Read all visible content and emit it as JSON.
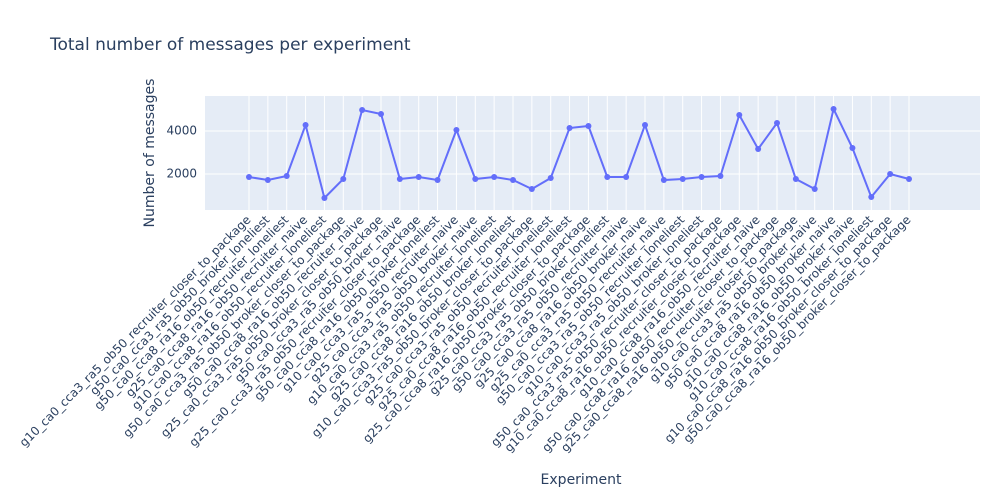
{
  "chart_data": {
    "type": "line",
    "title": "Total number of messages per experiment",
    "xlabel": "Experiment",
    "ylabel": "Number of messages",
    "categories": [
      "g10_ca0_cca3_ra5_ob50_recruiter_closer_to_package",
      "g50_ca0_cca3_ra5_ob50_broker_loneliest",
      "g50_ca0_cca8_ra16_ob50_recruiter_loneliest",
      "g25_ca0_cca8_ra16_ob50_recruiter_naive",
      "g10_ca0_cca8_ra16_ob50_recruiter_loneliest",
      "g50_ca0_cca3_ra5_ob50_broker_closer_to_package",
      "g50_ca0_cca8_ra16_ob50_recruiter_naive",
      "g25_ca0_cca3_ra5_ob50_broker_closer_to_package",
      "g50_ca0_cca3_ra5_ob50_broker_naive",
      "g25_ca0_cca3_ra5_ob50_recruiter_closer_to_package",
      "g50_ca0_cca8_ra16_ob50_broker_loneliest",
      "g10_ca0_cca3_ra5_ob50_recruiter_naive",
      "g25_ca0_cca3_ra5_ob50_broker_naive",
      "g10_ca0_cca3_ra5_ob50_recruiter_loneliest",
      "g25_ca0_cca8_ra16_ob50_broker_loneliest",
      "g10_ca0_cca3_ra5_ob50_broker_closer_to_package",
      "g25_ca0_cca3_ra5_ob50_recruiter_loneliest",
      "g25_ca0_cca8_ra16_ob50_recruiter_loneliest",
      "g25_ca0_cca8_ra16_ob50_broker_closer_to_package",
      "g25_ca0_cca3_ra5_ob50_broker_loneliest",
      "g50_ca0_cca3_ra5_ob50_recruiter_naive",
      "g25_ca0_cca8_ra16_ob50_broker_naive",
      "g25_ca0_cca3_ra5_ob50_recruiter_naive",
      "g50_ca0_cca3_ra5_ob50_recruiter_loneliest",
      "g10_ca0_cca3_ra5_ob50_broker_loneliest",
      "g50_ca0_cca3_ra5_ob50_recruiter_closer_to_package",
      "g10_ca0_cca8_ra16_ob50_recruiter_closer_to_package",
      "g10_ca0_cca8_ra16_ob50_recruiter_naive",
      "g50_ca0_cca8_ra16_ob50_recruiter_closer_to_package",
      "g25_ca0_cca8_ra16_ob50_recruiter_closer_to_package",
      "g10_ca0_cca3_ra5_ob50_broker_naive",
      "g50_ca0_cca8_ra16_ob50_broker_naive",
      "g10_ca0_cca8_ra16_ob50_broker_naive",
      "g10_ca0_cca8_ra16_ob50_broker_loneliest",
      "g10_ca0_cca8_ra16_ob50_broker_closer_to_package",
      "g50_ca0_cca8_ra16_ob50_broker_closer_to_package"
    ],
    "values": [
      1860,
      1720,
      1907,
      4280,
      884,
      1767,
      4977,
      4791,
      1767,
      1860,
      1720,
      4047,
      1767,
      1860,
      1720,
      1302,
      1814,
      4140,
      4233,
      1860,
      1860,
      4280,
      1720,
      1767,
      1860,
      1907,
      4744,
      3163,
      4372,
      1767,
      1302,
      5023,
      3209,
      930,
      2000,
      1767
    ],
    "color": "#636efa",
    "ylim": [
      326,
      5628
    ],
    "yticks": [
      2000,
      4000
    ],
    "grid": true
  }
}
